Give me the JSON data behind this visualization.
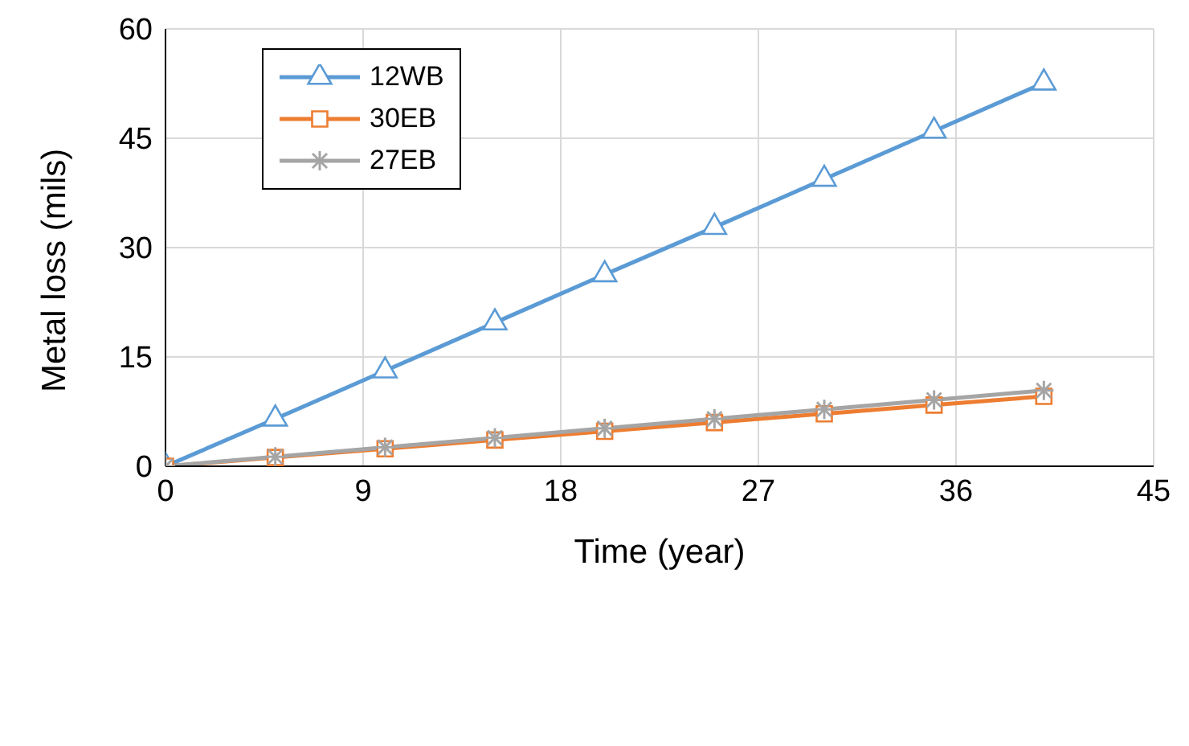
{
  "chart_data": {
    "type": "line",
    "xlabel": "Time (year)",
    "ylabel": "Metal loss (mils)",
    "x": [
      0,
      5,
      10,
      15,
      20,
      25,
      30,
      35,
      40
    ],
    "series": [
      {
        "name": "12WB",
        "color": "#5b9bd5",
        "marker": "triangle",
        "values": [
          0,
          6.5,
          13.1,
          19.7,
          26.3,
          32.8,
          39.4,
          46,
          52.6
        ]
      },
      {
        "name": "30EB",
        "color": "#ed7d31",
        "marker": "square",
        "values": [
          0,
          1.2,
          2.4,
          3.6,
          4.8,
          6.0,
          7.2,
          8.4,
          9.6
        ]
      },
      {
        "name": "27EB",
        "color": "#a5a5a5",
        "marker": "cross",
        "values": [
          0,
          1.3,
          2.6,
          3.9,
          5.2,
          6.5,
          7.8,
          9.1,
          10.4
        ]
      }
    ],
    "xlim": [
      0,
      45
    ],
    "xticks": [
      0,
      9,
      18,
      27,
      36,
      45
    ],
    "ylim": [
      0,
      60
    ],
    "yticks": [
      0,
      15,
      30,
      45,
      60
    ],
    "grid": true,
    "legend": "top left",
    "line_style": "solid"
  }
}
